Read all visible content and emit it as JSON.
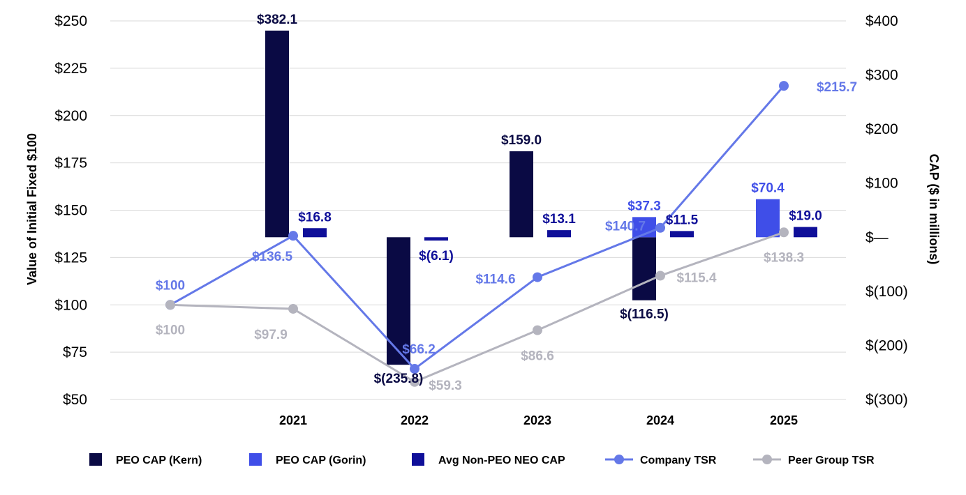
{
  "chart_data": {
    "type": "bar+line",
    "categories": [
      "",
      "2021",
      "2022",
      "2023",
      "2024",
      "2025"
    ],
    "left_axis": {
      "label": "Value of Initial Fixed $100",
      "range": [
        50,
        250
      ],
      "ticks": [
        250,
        225,
        200,
        175,
        150,
        125,
        100,
        75,
        50
      ],
      "tick_labels": [
        "$250",
        "$225",
        "$200",
        "$175",
        "$150",
        "$125",
        "$100",
        "$75",
        "$50"
      ]
    },
    "right_axis": {
      "label": "CAP ($ in millions)",
      "range": [
        -300,
        400
      ],
      "ticks": [
        400,
        300,
        200,
        100,
        0,
        -100,
        -200,
        -300
      ],
      "tick_labels": [
        "$400",
        "$300",
        "$200",
        "$100",
        "$—",
        "$(100)",
        "$(200)",
        "$(300)"
      ]
    },
    "grid": true,
    "legend_position": "bottom",
    "bar_series": [
      {
        "name": "PEO CAP (Kern)",
        "color": "#0a0a44",
        "slot": 0,
        "values": [
          null,
          382.1,
          -235.8,
          159.0,
          -116.5,
          null
        ],
        "labels": [
          "",
          "$382.1",
          "$(235.8)",
          "$159.0",
          "$(116.5)",
          ""
        ]
      },
      {
        "name": "PEO CAP (Gorin)",
        "color": "#3f4ee8",
        "slot": 0,
        "values": [
          null,
          null,
          null,
          null,
          37.3,
          70.4
        ],
        "labels": [
          "",
          "",
          "",
          "",
          "$37.3",
          "$70.4"
        ]
      },
      {
        "name": "Avg Non-PEO NEO CAP",
        "color": "#0f0f99",
        "slot": 1,
        "values": [
          null,
          16.8,
          -6.1,
          13.1,
          11.5,
          19.0
        ],
        "labels": [
          "",
          "$16.8",
          "$(6.1)",
          "$13.1",
          "$11.5",
          "$19.0"
        ]
      }
    ],
    "line_series": [
      {
        "name": "Company TSR",
        "color": "#6478e8",
        "values": [
          100,
          136.5,
          66.2,
          114.6,
          140.7,
          215.7
        ],
        "labels": [
          "$100",
          "$136.5",
          "$66.2",
          "$114.6",
          "$140.7",
          "$215.7"
        ]
      },
      {
        "name": "Peer Group TSR",
        "color": "#b4b4be",
        "values": [
          100,
          97.9,
          59.3,
          86.6,
          115.4,
          138.3
        ],
        "labels": [
          "$100",
          "$97.9",
          "$59.3",
          "$86.6",
          "$115.4",
          "$138.3"
        ]
      }
    ],
    "legend": [
      {
        "name": "PEO CAP (Kern)",
        "kind": "box",
        "color": "#0a0a44"
      },
      {
        "name": "PEO CAP (Gorin)",
        "kind": "box",
        "color": "#3f4ee8"
      },
      {
        "name": "Avg Non-PEO NEO CAP",
        "kind": "box",
        "color": "#0f0f99"
      },
      {
        "name": "Company TSR",
        "kind": "line",
        "color": "#6478e8"
      },
      {
        "name": "Peer Group TSR",
        "kind": "line",
        "color": "#b4b4be"
      }
    ]
  }
}
